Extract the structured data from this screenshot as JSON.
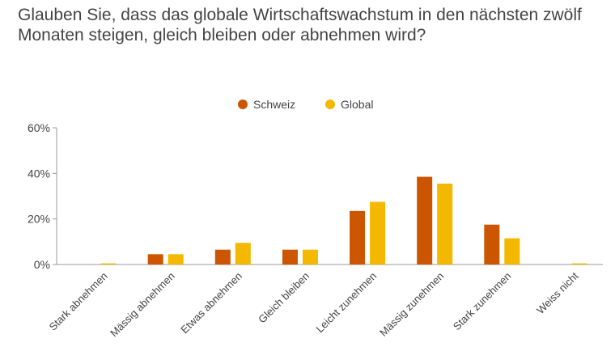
{
  "chart_data": {
    "type": "bar",
    "title": "Glauben Sie, dass das globale Wirtschaftswachstum in den nächsten zwölf Monaten steigen, gleich bleiben oder abnehmen wird?",
    "categories": [
      "Stark abnehmen",
      "Mässig abnehmen",
      "Etwas abnehmen",
      "Gleich bleiben",
      "Leicht zunehmen",
      "Mässig zunehmen",
      "Stark zunehmen",
      "Weiss nicht"
    ],
    "series": [
      {
        "name": "Schweiz",
        "color": "#cc5500",
        "values": [
          0,
          4.5,
          6.5,
          6.5,
          23.5,
          38.5,
          17.5,
          0
        ]
      },
      {
        "name": "Global",
        "color": "#f5b800",
        "values": [
          0.5,
          4.5,
          9.5,
          6.5,
          27.5,
          35.5,
          11.5,
          0.5
        ]
      }
    ],
    "ylim": [
      0,
      60
    ],
    "yticks": [
      0,
      20,
      40,
      60
    ],
    "ytick_labels": [
      "0%",
      "20%",
      "40%",
      "60%"
    ],
    "legend_position": "top-center",
    "grid": false
  }
}
